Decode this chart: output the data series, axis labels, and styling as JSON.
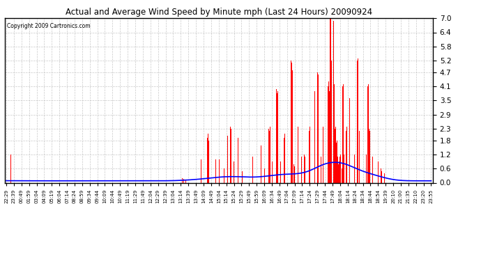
{
  "title": "Actual and Average Wind Speed by Minute mph (Last 24 Hours) 20090924",
  "copyright_text": "Copyright 2009 Cartronics.com",
  "yticks": [
    0.0,
    0.6,
    1.2,
    1.8,
    2.3,
    2.9,
    3.5,
    4.1,
    4.7,
    5.2,
    5.8,
    6.4,
    7.0
  ],
  "ymax": 7.0,
  "ymin": 0.0,
  "bar_color": "#FF0000",
  "line_color": "#0000FF",
  "background_color": "#FFFFFF",
  "grid_color": "#BBBBBB",
  "n_minutes": 1441,
  "x_tick_labels": [
    "22:29",
    "23:39",
    "00:49",
    "01:59",
    "03:04",
    "04:09",
    "05:19",
    "06:04",
    "07:14",
    "08:24",
    "08:59",
    "09:34",
    "09:44",
    "10:09",
    "10:44",
    "10:49",
    "11:19",
    "11:29",
    "11:49",
    "12:04",
    "12:29",
    "12:39",
    "13:04",
    "13:14",
    "13:39",
    "13:49",
    "14:09",
    "14:49",
    "15:04",
    "15:14",
    "15:24",
    "15:29",
    "15:49",
    "15:59",
    "16:09",
    "16:34",
    "16:49",
    "17:04",
    "17:09",
    "17:14",
    "17:24",
    "17:29",
    "17:44",
    "17:49",
    "18:04",
    "18:14",
    "18:24",
    "18:34",
    "18:44",
    "18:54",
    "19:39",
    "20:10",
    "21:00",
    "21:35",
    "22:10",
    "23:20",
    "23:55"
  ],
  "bar_data": [
    [
      15,
      1.2
    ],
    [
      597,
      0.2
    ],
    [
      601,
      0.15
    ],
    [
      608,
      0.1
    ],
    [
      631,
      1.0
    ],
    [
      633,
      1.1
    ],
    [
      635,
      0.9
    ],
    [
      638,
      0.2
    ],
    [
      660,
      1.0
    ],
    [
      662,
      0.8
    ],
    [
      680,
      2.0
    ],
    [
      682,
      1.9
    ],
    [
      684,
      2.1
    ],
    [
      686,
      1.8
    ],
    [
      695,
      0.8
    ],
    [
      697,
      0.7
    ],
    [
      710,
      1.0
    ],
    [
      711,
      1.1
    ],
    [
      713,
      0.9
    ],
    [
      720,
      1.1
    ],
    [
      722,
      1.0
    ],
    [
      730,
      0.9
    ],
    [
      732,
      0.8
    ],
    [
      733,
      1.0
    ],
    [
      738,
      0.6
    ],
    [
      740,
      0.5
    ],
    [
      750,
      2.0
    ],
    [
      751,
      2.2
    ],
    [
      752,
      2.3
    ],
    [
      754,
      2.1
    ],
    [
      758,
      2.5
    ],
    [
      760,
      2.4
    ],
    [
      762,
      2.3
    ],
    [
      770,
      1.0
    ],
    [
      771,
      0.9
    ],
    [
      773,
      0.8
    ],
    [
      780,
      2.0
    ],
    [
      782,
      1.8
    ],
    [
      784,
      2.1
    ],
    [
      786,
      1.9
    ],
    [
      789,
      2.0
    ],
    [
      800,
      0.5
    ],
    [
      801,
      0.6
    ],
    [
      810,
      2.3
    ],
    [
      811,
      2.2
    ],
    [
      813,
      2.4
    ],
    [
      820,
      0.6
    ],
    [
      822,
      0.5
    ],
    [
      835,
      1.1
    ],
    [
      837,
      1.0
    ],
    [
      839,
      1.2
    ],
    [
      860,
      1.5
    ],
    [
      862,
      1.4
    ],
    [
      864,
      1.6
    ],
    [
      875,
      0.6
    ],
    [
      877,
      0.5
    ],
    [
      890,
      2.3
    ],
    [
      892,
      2.2
    ],
    [
      894,
      2.4
    ],
    [
      896,
      2.3
    ],
    [
      900,
      1.0
    ],
    [
      901,
      0.9
    ],
    [
      915,
      4.1
    ],
    [
      916,
      4.0
    ],
    [
      918,
      3.8
    ],
    [
      920,
      3.9
    ],
    [
      922,
      4.2
    ],
    [
      928,
      1.0
    ],
    [
      930,
      0.9
    ],
    [
      940,
      2.0
    ],
    [
      942,
      1.9
    ],
    [
      944,
      2.1
    ],
    [
      955,
      1.0
    ],
    [
      957,
      0.9
    ],
    [
      959,
      1.1
    ],
    [
      965,
      5.2
    ],
    [
      966,
      4.9
    ],
    [
      968,
      5.1
    ],
    [
      970,
      4.8
    ],
    [
      975,
      0.8
    ],
    [
      977,
      0.7
    ],
    [
      985,
      2.3
    ],
    [
      987,
      2.2
    ],
    [
      989,
      2.4
    ],
    [
      1000,
      1.2
    ],
    [
      1001,
      1.1
    ],
    [
      1010,
      1.2
    ],
    [
      1012,
      1.1
    ],
    [
      1014,
      1.3
    ],
    [
      1025,
      2.3
    ],
    [
      1027,
      2.2
    ],
    [
      1029,
      2.4
    ],
    [
      1040,
      4.1
    ],
    [
      1042,
      4.0
    ],
    [
      1044,
      4.2
    ],
    [
      1046,
      3.9
    ],
    [
      1055,
      4.7
    ],
    [
      1057,
      4.6
    ],
    [
      1059,
      4.8
    ],
    [
      1065,
      1.2
    ],
    [
      1067,
      1.1
    ],
    [
      1070,
      2.3
    ],
    [
      1072,
      2.2
    ],
    [
      1074,
      2.4
    ],
    [
      1080,
      1.0
    ],
    [
      1082,
      0.9
    ],
    [
      1090,
      4.1
    ],
    [
      1091,
      4.2
    ],
    [
      1092,
      4.0
    ],
    [
      1093,
      4.3
    ],
    [
      1094,
      4.1
    ],
    [
      1095,
      3.9
    ],
    [
      1096,
      4.0
    ],
    [
      1097,
      7.0
    ],
    [
      1098,
      6.8
    ],
    [
      1100,
      7.0
    ],
    [
      1101,
      6.5
    ],
    [
      1102,
      5.2
    ],
    [
      1104,
      5.0
    ],
    [
      1106,
      5.3
    ],
    [
      1108,
      7.0
    ],
    [
      1109,
      6.9
    ],
    [
      1110,
      4.1
    ],
    [
      1111,
      4.0
    ],
    [
      1112,
      4.2
    ],
    [
      1113,
      3.9
    ],
    [
      1114,
      2.3
    ],
    [
      1115,
      2.2
    ],
    [
      1116,
      2.4
    ],
    [
      1117,
      2.3
    ],
    [
      1118,
      1.8
    ],
    [
      1119,
      1.7
    ],
    [
      1120,
      1.9
    ],
    [
      1121,
      1.8
    ],
    [
      1122,
      1.2
    ],
    [
      1123,
      1.1
    ],
    [
      1124,
      1.3
    ],
    [
      1125,
      1.2
    ],
    [
      1126,
      0.8
    ],
    [
      1127,
      0.7
    ],
    [
      1128,
      0.9
    ],
    [
      1129,
      0.8
    ],
    [
      1130,
      1.2
    ],
    [
      1131,
      1.1
    ],
    [
      1132,
      1.3
    ],
    [
      1133,
      1.2
    ],
    [
      1134,
      0.6
    ],
    [
      1136,
      0.7
    ],
    [
      1138,
      0.6
    ],
    [
      1140,
      4.1
    ],
    [
      1141,
      3.9
    ],
    [
      1142,
      4.2
    ],
    [
      1143,
      2.3
    ],
    [
      1144,
      2.2
    ],
    [
      1145,
      1.2
    ],
    [
      1146,
      1.1
    ],
    [
      1148,
      1.3
    ],
    [
      1150,
      2.3
    ],
    [
      1152,
      2.2
    ],
    [
      1154,
      2.4
    ],
    [
      1160,
      3.5
    ],
    [
      1162,
      3.4
    ],
    [
      1164,
      3.6
    ],
    [
      1170,
      2.3
    ],
    [
      1172,
      2.2
    ],
    [
      1174,
      2.4
    ],
    [
      1180,
      1.2
    ],
    [
      1182,
      1.1
    ],
    [
      1184,
      1.3
    ],
    [
      1190,
      5.2
    ],
    [
      1191,
      5.0
    ],
    [
      1192,
      5.3
    ],
    [
      1195,
      2.3
    ],
    [
      1197,
      2.2
    ],
    [
      1200,
      1.2
    ],
    [
      1202,
      1.1
    ],
    [
      1210,
      2.3
    ],
    [
      1212,
      2.2
    ],
    [
      1214,
      2.4
    ],
    [
      1220,
      1.2
    ],
    [
      1222,
      1.1
    ],
    [
      1225,
      4.1
    ],
    [
      1226,
      4.0
    ],
    [
      1227,
      4.2
    ],
    [
      1228,
      3.9
    ],
    [
      1230,
      2.3
    ],
    [
      1232,
      2.2
    ],
    [
      1234,
      2.4
    ],
    [
      1240,
      1.2
    ],
    [
      1242,
      1.1
    ],
    [
      1250,
      2.3
    ],
    [
      1252,
      2.2
    ],
    [
      1260,
      1.0
    ],
    [
      1261,
      0.9
    ],
    [
      1262,
      1.1
    ],
    [
      1270,
      0.6
    ],
    [
      1272,
      0.5
    ],
    [
      1280,
      0.5
    ],
    [
      1282,
      0.4
    ]
  ]
}
